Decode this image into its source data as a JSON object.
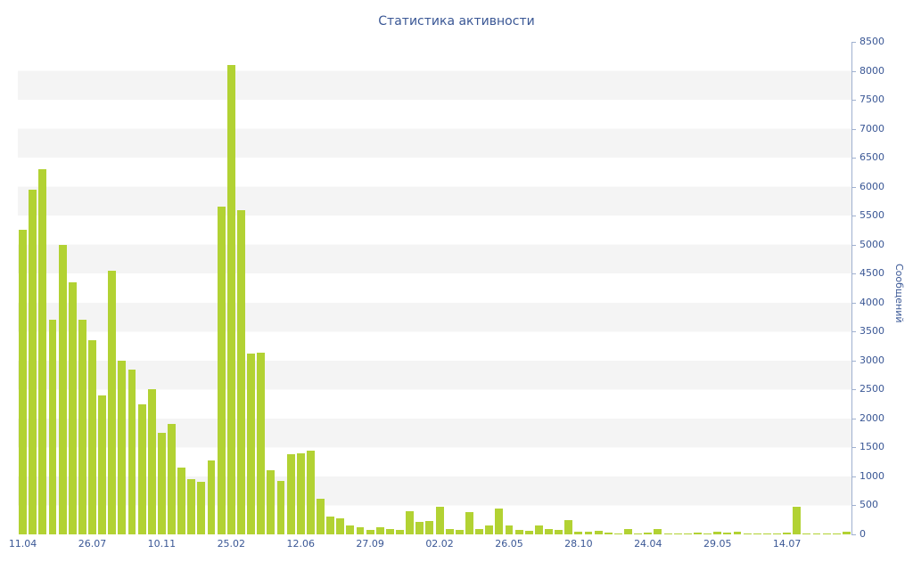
{
  "chart_data": {
    "type": "bar",
    "title": "Статистика активности",
    "ylabel": "Сообщений",
    "xlabel": "",
    "ylim": [
      0,
      8500
    ],
    "y_tick_step": 500,
    "grid": "horizontal-stripes",
    "legend": "none",
    "y_axis_position": "right",
    "y_tick_labels": [
      "0",
      "500",
      "1000",
      "1500",
      "2000",
      "2500",
      "3000",
      "3500",
      "4000",
      "4500",
      "5000",
      "5500",
      "6000",
      "6500",
      "7000",
      "7500",
      "8000",
      "8500"
    ],
    "x_tick_labels": [
      "11.04",
      "26.07",
      "10.11",
      "25.02",
      "12.06",
      "27.09",
      "02.02",
      "26.05",
      "28.10",
      "24.04",
      "29.05",
      "14.07"
    ],
    "x_tick_every": 7,
    "values": [
      5250,
      5950,
      6300,
      3700,
      5000,
      4350,
      3700,
      3350,
      2400,
      4550,
      3000,
      2850,
      2250,
      2500,
      1750,
      1900,
      1150,
      950,
      900,
      1280,
      5650,
      8100,
      5600,
      3120,
      3130,
      1100,
      920,
      1380,
      1400,
      1450,
      610,
      300,
      280,
      150,
      120,
      80,
      120,
      100,
      70,
      400,
      220,
      230,
      480,
      100,
      80,
      380,
      100,
      150,
      450,
      150,
      80,
      60,
      150,
      100,
      80,
      250,
      50,
      40,
      60,
      30,
      20,
      100,
      20,
      30,
      100,
      20,
      10,
      20,
      30,
      20,
      40,
      30,
      50,
      20,
      10,
      20,
      10,
      30,
      480,
      20,
      10,
      15,
      10,
      40
    ],
    "colors": {
      "bar": "#b2d233",
      "stripe": "#f4f4f4",
      "axis": "#9fb0cf",
      "label": "#3a5795",
      "title": "#3a5795",
      "background": "#ffffff"
    }
  }
}
